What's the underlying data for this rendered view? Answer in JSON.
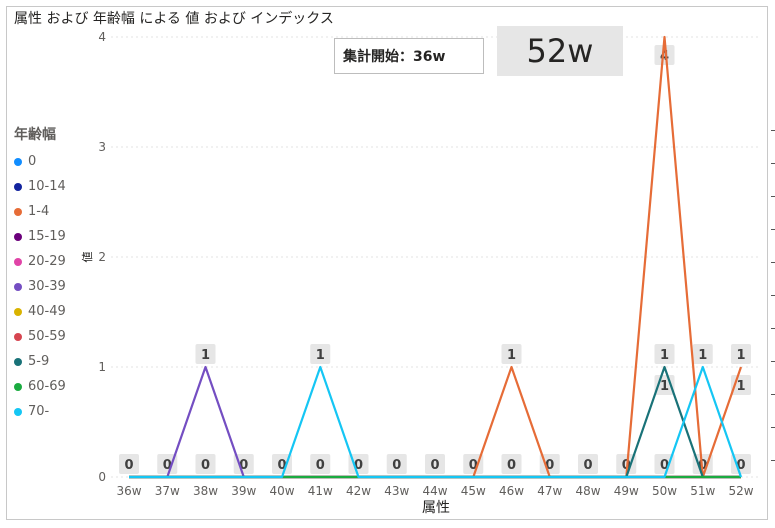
{
  "title": "属性 および 年齢幅 による 値 および インデックス",
  "card_start": "集計開始：36w",
  "card_latest": "52w",
  "chart_data": {
    "type": "line",
    "xlabel": "属性",
    "ylabel": "値",
    "ylim": [
      0,
      4
    ],
    "y_ticks": [
      "0",
      "1",
      "2",
      "3",
      "4"
    ],
    "grid": true,
    "legend_title": "年齢幅",
    "legend_placement": "left",
    "categories": [
      "36w",
      "37w",
      "38w",
      "39w",
      "40w",
      "41w",
      "42w",
      "43w",
      "44w",
      "45w",
      "46w",
      "47w",
      "48w",
      "49w",
      "50w",
      "51w",
      "52w"
    ],
    "series": [
      {
        "name": "0",
        "color": "#118dff",
        "values": [
          0,
          0,
          0,
          0,
          0,
          0,
          0,
          0,
          0,
          0,
          0,
          0,
          0,
          0,
          0,
          0,
          0
        ]
      },
      {
        "name": "10-14",
        "color": "#12239e",
        "values": [
          0,
          0,
          0,
          0,
          0,
          0,
          0,
          0,
          0,
          0,
          0,
          0,
          0,
          0,
          0,
          0,
          0
        ]
      },
      {
        "name": "1-4",
        "color": "#e66c37",
        "values": [
          0,
          0,
          0,
          0,
          0,
          0,
          0,
          0,
          0,
          0,
          1,
          0,
          0,
          0,
          4,
          0,
          1
        ]
      },
      {
        "name": "15-19",
        "color": "#6b007b",
        "values": [
          0,
          0,
          0,
          0,
          0,
          0,
          0,
          0,
          0,
          0,
          0,
          0,
          0,
          0,
          0,
          0,
          0
        ]
      },
      {
        "name": "20-29",
        "color": "#e044a7",
        "values": [
          0,
          0,
          0,
          0,
          0,
          0,
          0,
          0,
          0,
          0,
          0,
          0,
          0,
          0,
          0,
          0,
          0
        ]
      },
      {
        "name": "30-39",
        "color": "#744ec2",
        "values": [
          0,
          0,
          1,
          0,
          0,
          0,
          0,
          0,
          0,
          0,
          0,
          0,
          0,
          0,
          0,
          0,
          0
        ]
      },
      {
        "name": "40-49",
        "color": "#d9b300",
        "values": [
          0,
          0,
          0,
          0,
          0,
          0,
          0,
          0,
          0,
          0,
          0,
          0,
          0,
          0,
          0,
          0,
          0
        ]
      },
      {
        "name": "50-59",
        "color": "#d64550",
        "values": [
          0,
          0,
          0,
          0,
          0,
          0,
          0,
          0,
          0,
          0,
          0,
          0,
          0,
          0,
          0,
          0,
          0
        ]
      },
      {
        "name": "5-9",
        "color": "#197278",
        "values": [
          0,
          0,
          0,
          0,
          0,
          0,
          0,
          0,
          0,
          0,
          0,
          0,
          0,
          0,
          1,
          0,
          0
        ]
      },
      {
        "name": "60-69",
        "color": "#1aab40",
        "values": [
          0,
          0,
          0,
          0,
          0,
          0,
          0,
          0,
          0,
          0,
          0,
          0,
          0,
          0,
          0,
          0,
          0
        ]
      },
      {
        "name": "70-",
        "color": "#15c6f4",
        "values": [
          0,
          0,
          0,
          0,
          0,
          1,
          0,
          0,
          0,
          0,
          0,
          0,
          0,
          0,
          0,
          1,
          0
        ]
      }
    ],
    "data_labels": [
      {
        "i": 0,
        "v": 0,
        "text": "0"
      },
      {
        "i": 1,
        "v": 0,
        "text": "0"
      },
      {
        "i": 2,
        "v": 0,
        "text": "0"
      },
      {
        "i": 3,
        "v": 0,
        "text": "0"
      },
      {
        "i": 4,
        "v": 0,
        "text": "0"
      },
      {
        "i": 5,
        "v": 0,
        "text": "0"
      },
      {
        "i": 6,
        "v": 0,
        "text": "0"
      },
      {
        "i": 7,
        "v": 0,
        "text": "0"
      },
      {
        "i": 8,
        "v": 0,
        "text": "0"
      },
      {
        "i": 9,
        "v": 0,
        "text": "0"
      },
      {
        "i": 10,
        "v": 0,
        "text": "0"
      },
      {
        "i": 11,
        "v": 0,
        "text": "0"
      },
      {
        "i": 12,
        "v": 0,
        "text": "0"
      },
      {
        "i": 13,
        "v": 0,
        "text": "0"
      },
      {
        "i": 14,
        "v": 0,
        "text": "0"
      },
      {
        "i": 15,
        "v": 0,
        "text": "0"
      },
      {
        "i": 16,
        "v": 0,
        "text": "0"
      },
      {
        "i": 2,
        "v": 1,
        "text": "1"
      },
      {
        "i": 5,
        "v": 1,
        "text": "1"
      },
      {
        "i": 10,
        "v": 1,
        "text": "1"
      },
      {
        "i": 14,
        "v": 1,
        "text": "1"
      },
      {
        "i": 14,
        "v": 1,
        "text": "1",
        "below": true
      },
      {
        "i": 15,
        "v": 1,
        "text": "1"
      },
      {
        "i": 16,
        "v": 1,
        "text": "1"
      },
      {
        "i": 16,
        "v": 1,
        "text": "1",
        "below": true
      },
      {
        "i": 14,
        "v": 4,
        "text": "4",
        "below": true
      }
    ]
  }
}
